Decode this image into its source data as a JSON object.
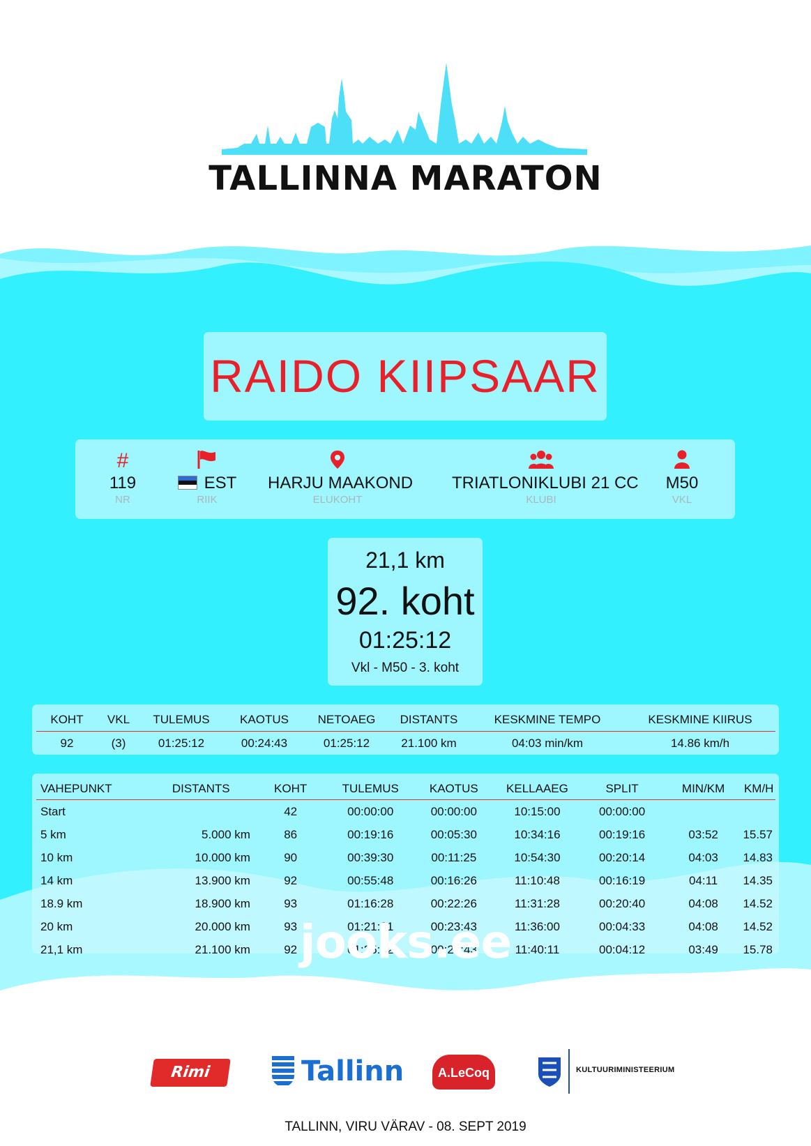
{
  "event": {
    "title": "TALLINNA MARATON",
    "footer": "TALLINN, VIRU VÄRAV - 08. SEPT 2019",
    "watermark": "jooks.ee"
  },
  "colors": {
    "accent_red": "#e8202a",
    "wave_cyan": "#33f0ff",
    "skyline": "#4cdff7"
  },
  "runner": {
    "name": "RAIDO KIIPSAAR",
    "info": [
      {
        "icon": "hash-icon",
        "value": "119",
        "label": "NR"
      },
      {
        "icon": "flag-icon",
        "value": "EST",
        "label": "RIIK"
      },
      {
        "icon": "map-pin-icon",
        "value": "HARJU MAAKOND",
        "label": "ELUKOHT"
      },
      {
        "icon": "group-icon",
        "value": "TRIATLONIKLUBI 21 CC",
        "label": "KLUBI"
      },
      {
        "icon": "person-icon",
        "value": "M50",
        "label": "VKL"
      }
    ]
  },
  "result": {
    "distance": "21,1 km",
    "place": "92. koht",
    "time": "01:25:12",
    "class_place": "Vkl - M50 - 3. koht"
  },
  "summary": {
    "headers": [
      "KOHT",
      "VKL",
      "TULEMUS",
      "KAOTUS",
      "NETOAEG",
      "DISTANTS",
      "KESKMINE TEMPO",
      "KESKMINE KIIRUS"
    ],
    "row": [
      "92",
      "(3)",
      "01:25:12",
      "00:24:43",
      "01:25:12",
      "21.100 km",
      "04:03 min/km",
      "14.86 km/h"
    ]
  },
  "splits": {
    "headers": [
      "VAHEPUNKT",
      "DISTANTS",
      "KOHT",
      "TULEMUS",
      "KAOTUS",
      "KELLAAEG",
      "SPLIT",
      "MIN/KM",
      "KM/H"
    ],
    "rows": [
      [
        "Start",
        "",
        "42",
        "00:00:00",
        "00:00:00",
        "10:15:00",
        "00:00:00",
        "",
        ""
      ],
      [
        "5 km",
        "5.000 km",
        "86",
        "00:19:16",
        "00:05:30",
        "10:34:16",
        "00:19:16",
        "03:52",
        "15.57"
      ],
      [
        "10 km",
        "10.000 km",
        "90",
        "00:39:30",
        "00:11:25",
        "10:54:30",
        "00:20:14",
        "04:03",
        "14.83"
      ],
      [
        "14 km",
        "13.900 km",
        "92",
        "00:55:48",
        "00:16:26",
        "11:10:48",
        "00:16:19",
        "04:11",
        "14.35"
      ],
      [
        "18.9 km",
        "18.900 km",
        "93",
        "01:16:28",
        "00:22:26",
        "11:31:28",
        "00:20:40",
        "04:08",
        "14.52"
      ],
      [
        "20 km",
        "20.000 km",
        "93",
        "01:21:01",
        "00:23:43",
        "11:36:00",
        "00:04:33",
        "04:08",
        "14.52"
      ],
      [
        "21,1 km",
        "21.100 km",
        "92",
        "01:25:12",
        "00:24:43",
        "11:40:11",
        "00:04:12",
        "03:49",
        "15.78"
      ]
    ]
  },
  "sponsors": {
    "rimi": "Rimi",
    "tallinn": "Tallinn",
    "alecoq": "A.LeCoq",
    "ministry": "KULTUURIMINISTEERIUM"
  }
}
